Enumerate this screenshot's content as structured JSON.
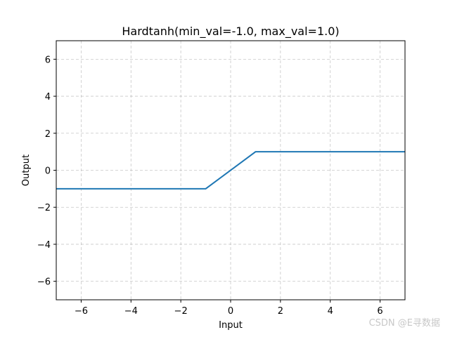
{
  "chart_data": {
    "type": "line",
    "title": "Hardtanh(min_val=-1.0, max_val=1.0)",
    "xlabel": "Input",
    "ylabel": "Output",
    "xlim": [
      -7,
      7
    ],
    "ylim": [
      -7,
      7
    ],
    "xticks": [
      -6,
      -4,
      -2,
      0,
      2,
      4,
      6
    ],
    "yticks": [
      -6,
      -4,
      -2,
      0,
      2,
      4,
      6
    ],
    "xtick_labels": [
      "−6",
      "−4",
      "−2",
      "0",
      "2",
      "4",
      "6"
    ],
    "ytick_labels": [
      "−6",
      "−4",
      "−2",
      "0",
      "2",
      "4",
      "6"
    ],
    "grid": true,
    "legend": "none",
    "series": [
      {
        "color": "#1f77b4",
        "x": [
          -7,
          -1,
          1,
          7
        ],
        "y": [
          -1,
          -1,
          1,
          1
        ]
      }
    ]
  },
  "watermark": "CSDN @E寻数据"
}
